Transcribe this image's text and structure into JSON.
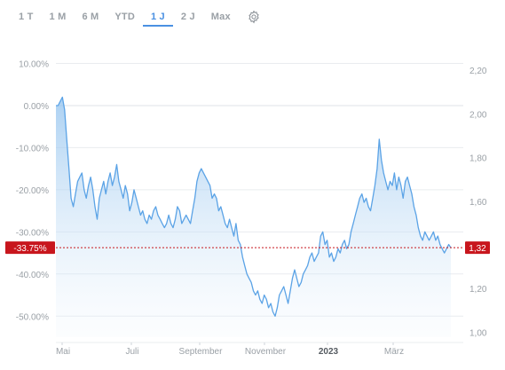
{
  "toolbar": {
    "tabs": [
      {
        "label": "1 T",
        "active": false
      },
      {
        "label": "1 M",
        "active": false
      },
      {
        "label": "6 M",
        "active": false
      },
      {
        "label": "YTD",
        "active": false
      },
      {
        "label": "1 J",
        "active": true
      },
      {
        "label": "2 J",
        "active": false
      },
      {
        "label": "Max",
        "active": false
      }
    ],
    "settings_icon": "gear-icon"
  },
  "colors": {
    "line": "#5ba3e6",
    "area_top": "#8fc1ee",
    "grid": "#e9ecef",
    "tick_text": "#9aa0a6",
    "marker": "#c8161d"
  },
  "chart_data": {
    "type": "area",
    "x_ticks": [
      "Mai",
      "Juli",
      "September",
      "November",
      "2023",
      "März"
    ],
    "x_tick_bold": "2023",
    "y_left": {
      "ticks": [
        "10.00%",
        "0.00%",
        "-10.00%",
        "-20.00%",
        "-30.00%",
        "-40.00%",
        "-50.00%"
      ],
      "range": [
        -55,
        12
      ]
    },
    "y_right": {
      "ticks": [
        "2,20",
        "2,00",
        "1,80",
        "1,60",
        "1,40",
        "1,20",
        "1,00"
      ],
      "range": [
        0.977,
        2.27
      ]
    },
    "current_marker": {
      "left_label": "-33.75%",
      "right_label": "1,32",
      "value_pct": -33.75
    },
    "series": [
      {
        "values_pct": [
          0,
          0,
          1,
          2,
          -1,
          -8,
          -15,
          -22,
          -24,
          -21,
          -18,
          -17,
          -16,
          -20,
          -22,
          -19,
          -17,
          -20,
          -24,
          -27,
          -22,
          -20,
          -18,
          -21,
          -18,
          -16,
          -19,
          -17,
          -14,
          -18,
          -20,
          -22,
          -19,
          -21,
          -25,
          -23,
          -20,
          -22,
          -24,
          -26,
          -25,
          -27,
          -28,
          -26,
          -27,
          -25,
          -24,
          -26,
          -27,
          -28,
          -29,
          -28,
          -26,
          -28,
          -29,
          -27,
          -24,
          -25,
          -28,
          -27,
          -26,
          -27,
          -28,
          -25,
          -22,
          -18,
          -16,
          -15,
          -16,
          -17,
          -18,
          -19,
          -22,
          -21,
          -22,
          -25,
          -24,
          -26,
          -28,
          -29,
          -27,
          -29,
          -31,
          -28,
          -32,
          -33,
          -36,
          -38,
          -40,
          -41,
          -42,
          -44,
          -45,
          -44,
          -46,
          -47,
          -45,
          -46,
          -48,
          -47,
          -49,
          -50,
          -48,
          -45,
          -44,
          -43,
          -45,
          -47,
          -44,
          -41,
          -39,
          -41,
          -43,
          -42,
          -40,
          -39,
          -38,
          -36,
          -35,
          -37,
          -36,
          -35,
          -31,
          -30,
          -33,
          -32,
          -36,
          -35,
          -37,
          -36,
          -34,
          -35,
          -33,
          -32,
          -34,
          -33,
          -30,
          -28,
          -26,
          -24,
          -22,
          -21,
          -23,
          -22,
          -24,
          -25,
          -22,
          -19,
          -15,
          -8,
          -13,
          -16,
          -18,
          -20,
          -18,
          -19,
          -16,
          -20,
          -17,
          -19,
          -22,
          -18,
          -17,
          -19,
          -21,
          -24,
          -26,
          -29,
          -31,
          -32,
          -30,
          -31,
          -32,
          -31,
          -30,
          -32,
          -31,
          -33,
          -34,
          -35,
          -34,
          -33,
          -33.75
        ]
      }
    ]
  }
}
